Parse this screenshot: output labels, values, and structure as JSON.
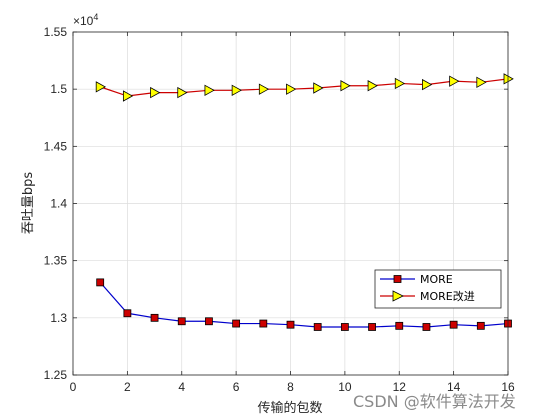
{
  "chart_data": {
    "type": "line",
    "title": "",
    "xlabel": "传输的包数",
    "ylabel": "吞吐量bps",
    "multiplier_label": "×10",
    "multiplier_exp": "4",
    "xlim": [
      0,
      16
    ],
    "ylim": [
      1.25,
      1.55
    ],
    "xticks": [
      "0",
      "2",
      "4",
      "6",
      "8",
      "10",
      "12",
      "14",
      "16"
    ],
    "yticks": [
      "1.25",
      "1.3",
      "1.35",
      "1.4",
      "1.45",
      "1.5",
      "1.55"
    ],
    "grid": true,
    "legend_position": "lower-right",
    "x": [
      1,
      2,
      3,
      4,
      5,
      6,
      7,
      8,
      9,
      10,
      11,
      12,
      13,
      14,
      15,
      16
    ],
    "series": [
      {
        "name": "MORE",
        "color": "#0000cc",
        "marker": "square",
        "marker_color": "#cc0000",
        "values": [
          1.331,
          1.304,
          1.3,
          1.297,
          1.297,
          1.295,
          1.295,
          1.294,
          1.292,
          1.292,
          1.292,
          1.293,
          1.292,
          1.294,
          1.293,
          1.295
        ]
      },
      {
        "name": "MORE改进",
        "color": "#cc0000",
        "marker": "triangle-right",
        "marker_color": "#ffff00",
        "values": [
          1.502,
          1.494,
          1.497,
          1.497,
          1.499,
          1.499,
          1.5,
          1.5,
          1.501,
          1.503,
          1.503,
          1.505,
          1.504,
          1.507,
          1.506,
          1.509
        ]
      }
    ]
  },
  "watermark": "CSDN @软件算法开发"
}
